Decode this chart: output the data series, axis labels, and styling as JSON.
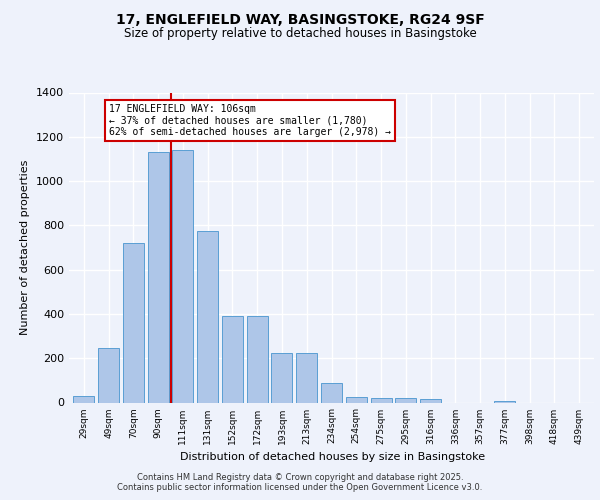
{
  "title_line1": "17, ENGLEFIELD WAY, BASINGSTOKE, RG24 9SF",
  "title_line2": "Size of property relative to detached houses in Basingstoke",
  "xlabel": "Distribution of detached houses by size in Basingstoke",
  "ylabel": "Number of detached properties",
  "bar_labels": [
    "29sqm",
    "49sqm",
    "70sqm",
    "90sqm",
    "111sqm",
    "131sqm",
    "152sqm",
    "172sqm",
    "193sqm",
    "213sqm",
    "234sqm",
    "254sqm",
    "275sqm",
    "295sqm",
    "316sqm",
    "336sqm",
    "357sqm",
    "377sqm",
    "398sqm",
    "418sqm",
    "439sqm"
  ],
  "bar_values": [
    30,
    245,
    720,
    1130,
    1140,
    775,
    390,
    390,
    225,
    225,
    90,
    27,
    20,
    20,
    15,
    0,
    0,
    8,
    0,
    0,
    0
  ],
  "bar_color": "#aec6e8",
  "bar_edge_color": "#5a9fd4",
  "background_color": "#eef2fb",
  "grid_color": "#ffffff",
  "red_line_index": 4,
  "annotation_text": "17 ENGLEFIELD WAY: 106sqm\n← 37% of detached houses are smaller (1,780)\n62% of semi-detached houses are larger (2,978) →",
  "annotation_box_color": "#ffffff",
  "annotation_box_edge": "#cc0000",
  "red_line_color": "#cc0000",
  "ylim": [
    0,
    1400
  ],
  "yticks": [
    0,
    200,
    400,
    600,
    800,
    1000,
    1200,
    1400
  ],
  "footer_line1": "Contains HM Land Registry data © Crown copyright and database right 2025.",
  "footer_line2": "Contains public sector information licensed under the Open Government Licence v3.0."
}
